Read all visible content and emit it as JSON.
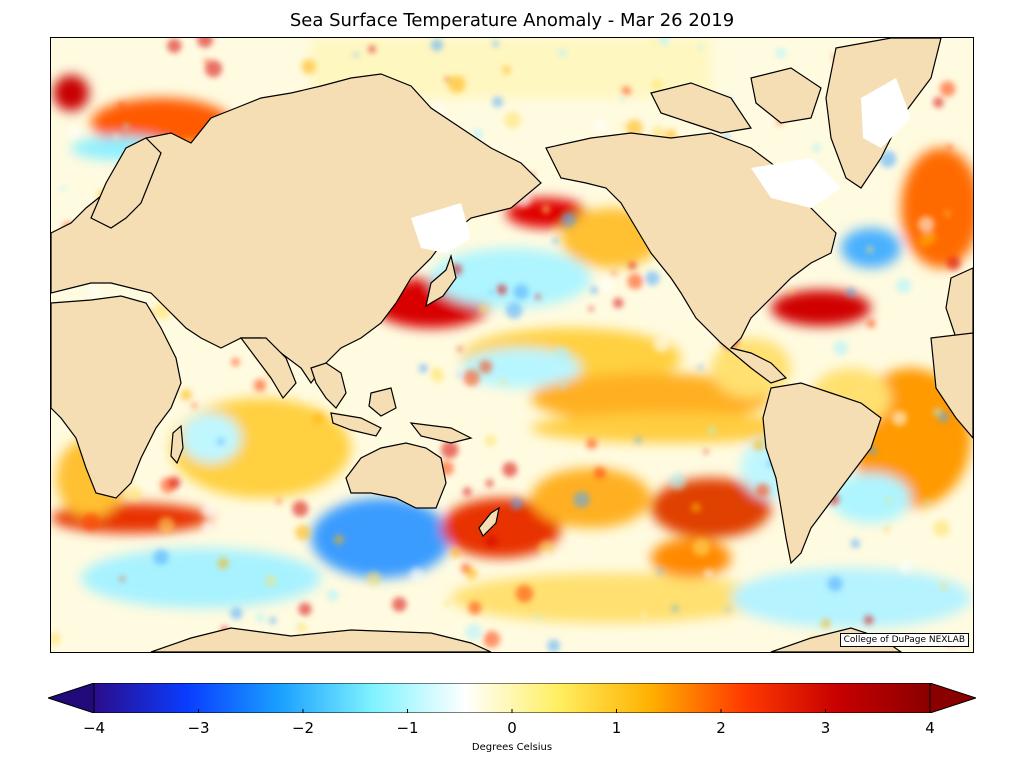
{
  "title": "Sea Surface Temperature Anomaly - Mar 26 2019",
  "credit": "College of DuPage NEXLAB",
  "colorbar": {
    "label": "Degrees Celsius",
    "min": -4,
    "max": 4,
    "ticks": [
      "−4",
      "−3",
      "−2",
      "−1",
      "0",
      "1",
      "2",
      "3",
      "4"
    ],
    "stops": [
      "#2a0d8a",
      "#0a3cff",
      "#1aa0ff",
      "#7ff3ff",
      "#ffffff",
      "#ffef60",
      "#ffb000",
      "#ff3a00",
      "#c80000",
      "#8a0000"
    ]
  },
  "colors": {
    "land": "#f5deb3",
    "coast": "#000000",
    "ocean_warm": "#ffd53a",
    "ocean_hot": "#e83000",
    "ocean_cool": "#8ff0ff",
    "ocean_cold": "#1a78ff"
  }
}
